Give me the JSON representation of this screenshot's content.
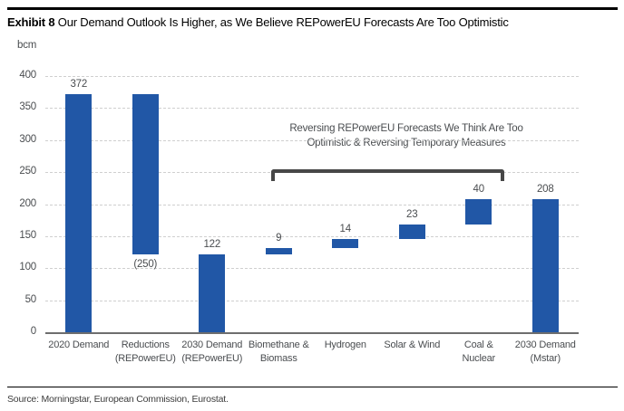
{
  "page": {
    "title_prefix": "Exhibit 8",
    "title_rest": " Our Demand Outlook Is Higher, as We Believe REPowerEU Forecasts Are Too Optimistic",
    "unit_label": "bcm",
    "source": "Source: Morningstar, European Commission, Eurostat."
  },
  "annotation": {
    "line1": "Reversing REPowerEU Forecasts We Think Are Too",
    "line2": "Optimistic & Reversing Temporary Measures"
  },
  "colors": {
    "bar": "#2157a6",
    "grid": "#cfcfcf",
    "axis_text": "#4a4d50",
    "bracket": "#474747"
  },
  "chart_data": {
    "type": "bar",
    "subtype": "waterfall",
    "title": "Our Demand Outlook Is Higher, as We Believe REPowerEU Forecasts Are Too Optimistic",
    "unit": "bcm",
    "xlabel": "",
    "ylabel": "bcm",
    "ylim": [
      0,
      400
    ],
    "yticks": [
      400,
      350,
      300,
      250,
      200,
      150,
      100,
      50,
      0
    ],
    "grid": true,
    "legend": false,
    "categories": [
      "2020 Demand",
      "Reductions (REPowerEU)",
      "2030 Demand (REPowerEU)",
      "Biomethane & Biomass",
      "Hydrogen",
      "Solar & Wind",
      "Coal & Nuclear",
      "2030 Demand (Mstar)"
    ],
    "bars": [
      {
        "label_lines": [
          "2020 Demand"
        ],
        "base": 0,
        "top": 372,
        "value": 372,
        "value_label": "372",
        "value_pos": "above"
      },
      {
        "label_lines": [
          "Reductions",
          "(REPowerEU)"
        ],
        "base": 122,
        "top": 372,
        "value": -250,
        "value_label": "(250)",
        "value_pos": "below"
      },
      {
        "label_lines": [
          "2030 Demand",
          "(REPowerEU)"
        ],
        "base": 0,
        "top": 122,
        "value": 122,
        "value_label": "122",
        "value_pos": "above"
      },
      {
        "label_lines": [
          "Biomethane &",
          "Biomass"
        ],
        "base": 122,
        "top": 131,
        "value": 9,
        "value_label": "9",
        "value_pos": "above"
      },
      {
        "label_lines": [
          "Hydrogen"
        ],
        "base": 131,
        "top": 145,
        "value": 14,
        "value_label": "14",
        "value_pos": "above"
      },
      {
        "label_lines": [
          "Solar & Wind"
        ],
        "base": 145,
        "top": 168,
        "value": 23,
        "value_label": "23",
        "value_pos": "above"
      },
      {
        "label_lines": [
          "Coal &",
          "Nuclear"
        ],
        "base": 168,
        "top": 208,
        "value": 40,
        "value_label": "40",
        "value_pos": "above"
      },
      {
        "label_lines": [
          "2030 Demand",
          "(Mstar)"
        ],
        "base": 0,
        "top": 208,
        "value": 208,
        "value_label": "208",
        "value_pos": "above"
      }
    ],
    "bracket": {
      "from_index": 3,
      "to_index": 6,
      "y_value": 254,
      "note": "Reversing REPowerEU Forecasts We Think Are Too Optimistic & Reversing Temporary Measures"
    }
  }
}
